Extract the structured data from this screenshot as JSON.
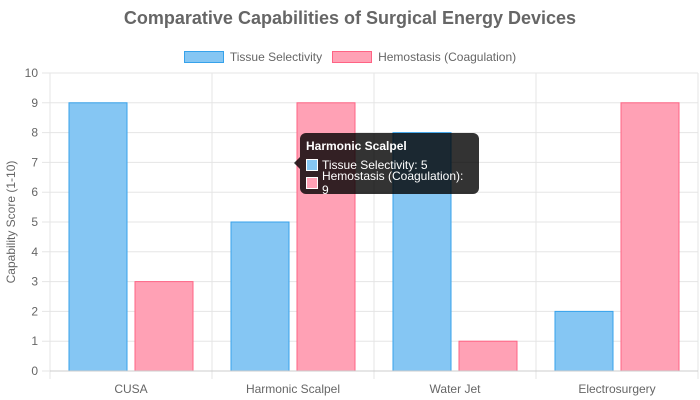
{
  "colors": {
    "series_fill": [
      "#85c6f3",
      "#ffa1b5"
    ],
    "series_stroke": [
      "#36a2eb",
      "#ff6384"
    ],
    "grid": "#e5e5e5",
    "text": "#666666"
  },
  "tooltip": {
    "title": "Harmonic Scalpel",
    "rows": [
      "Tissue Selectivity: 5",
      "Hemostasis (Coagulation): 9"
    ]
  },
  "chart_data": {
    "type": "bar",
    "title": "Comparative Capabilities of Surgical Energy Devices",
    "xlabel": "",
    "ylabel": "Capability Score (1-10)",
    "ylim": [
      0,
      10
    ],
    "yticks": [
      "0",
      "1",
      "2",
      "3",
      "4",
      "5",
      "6",
      "7",
      "8",
      "9",
      "10"
    ],
    "categories": [
      "CUSA",
      "Harmonic Scalpel",
      "Water Jet",
      "Electrosurgery"
    ],
    "series": [
      {
        "name": "Tissue Selectivity",
        "values": [
          9,
          5,
          8,
          2
        ]
      },
      {
        "name": "Hemostasis (Coagulation)",
        "values": [
          3,
          9,
          1,
          9
        ]
      }
    ],
    "grid": true,
    "legend": "top-center"
  }
}
